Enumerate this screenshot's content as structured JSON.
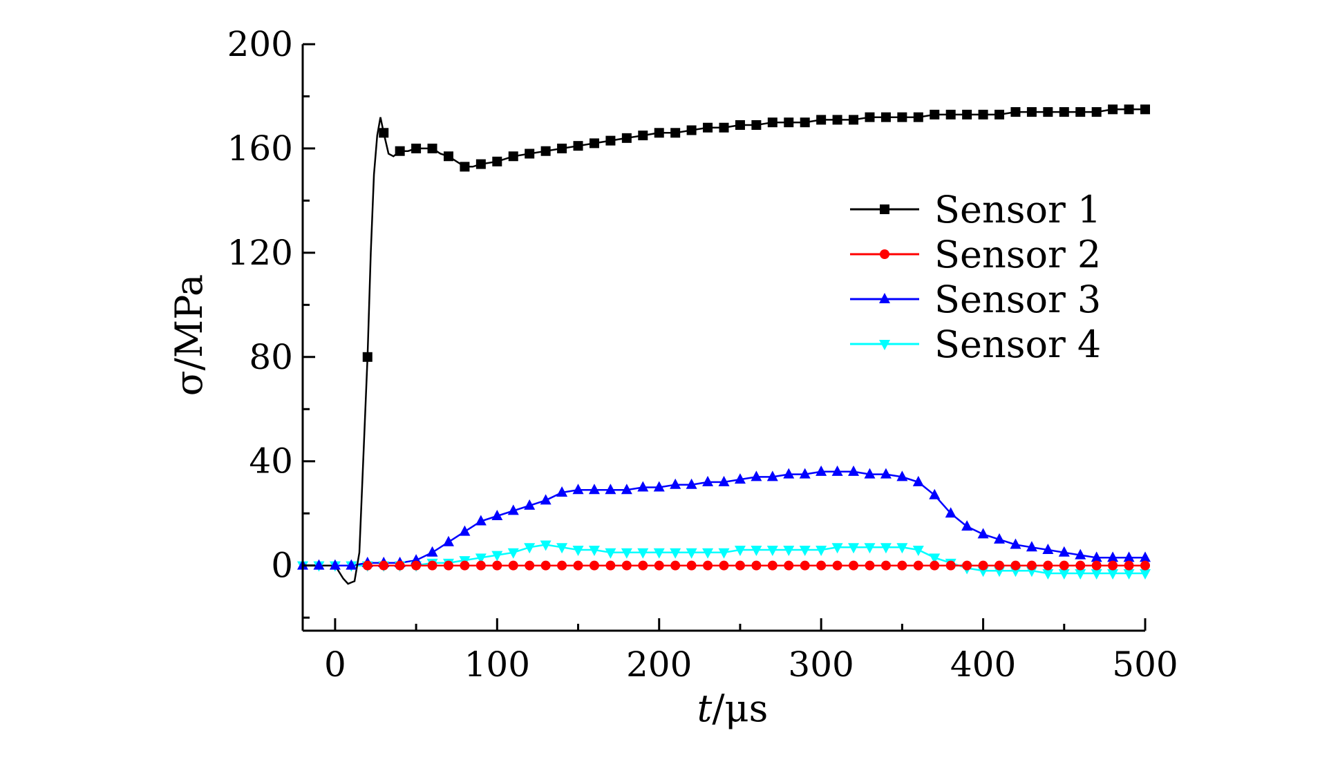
{
  "chart_data": {
    "type": "line",
    "xlabel_italic": "t",
    "xlabel_unit": "/μs",
    "ylabel": "σ/MPa",
    "xlim": [
      -20,
      500
    ],
    "ylim": [
      -25,
      200
    ],
    "x_ticks": [
      0,
      100,
      200,
      300,
      400,
      500
    ],
    "y_ticks": [
      0,
      40,
      80,
      120,
      160,
      200
    ],
    "grid": false,
    "legend_position": "right",
    "series": [
      {
        "name": "Sensor 1",
        "color": "#000000",
        "marker": "square",
        "x": [
          -20,
          -10,
          0,
          5,
          8,
          12,
          15,
          18,
          20,
          22,
          24,
          26,
          28,
          30,
          33,
          36,
          40,
          45,
          50,
          55,
          60,
          65,
          70,
          75,
          80,
          85,
          90,
          100,
          110,
          120,
          130,
          140,
          150,
          160,
          170,
          180,
          190,
          200,
          210,
          220,
          230,
          240,
          250,
          260,
          270,
          280,
          290,
          300,
          310,
          320,
          330,
          340,
          350,
          360,
          370,
          380,
          390,
          400,
          410,
          420,
          430,
          440,
          450,
          460,
          470,
          480,
          490,
          500
        ],
        "y": [
          0,
          0,
          0,
          -5,
          -7,
          -6,
          5,
          50,
          80,
          120,
          150,
          165,
          172,
          166,
          158,
          157,
          159,
          159,
          160,
          160,
          160,
          158,
          157,
          155,
          153,
          153,
          154,
          155,
          157,
          158,
          159,
          160,
          161,
          162,
          163,
          164,
          165,
          166,
          166,
          167,
          168,
          168,
          169,
          169,
          170,
          170,
          170,
          171,
          171,
          171,
          172,
          172,
          172,
          172,
          173,
          173,
          173,
          173,
          173,
          174,
          174,
          174,
          174,
          174,
          174,
          175,
          175,
          175
        ],
        "marker_x": [
          20,
          30,
          40,
          50,
          60,
          70,
          80,
          90,
          100,
          110,
          120,
          130,
          140,
          150,
          160,
          170,
          180,
          190,
          200,
          210,
          220,
          230,
          240,
          250,
          260,
          270,
          280,
          290,
          300,
          310,
          320,
          330,
          340,
          350,
          360,
          370,
          380,
          390,
          400,
          410,
          420,
          430,
          440,
          450,
          460,
          470,
          480,
          490,
          500
        ]
      },
      {
        "name": "Sensor 2",
        "color": "#ff0000",
        "marker": "circle",
        "x": [
          20,
          30,
          40,
          50,
          60,
          70,
          80,
          90,
          100,
          110,
          120,
          130,
          140,
          150,
          160,
          170,
          180,
          190,
          200,
          210,
          220,
          230,
          240,
          250,
          260,
          270,
          280,
          290,
          300,
          310,
          320,
          330,
          340,
          350,
          360,
          370,
          380,
          390,
          400,
          410,
          420,
          430,
          440,
          450,
          460,
          470,
          480,
          490,
          500
        ],
        "y": [
          0,
          0,
          0,
          0,
          0,
          0,
          0,
          0,
          0,
          0,
          0,
          0,
          0,
          0,
          0,
          0,
          0,
          0,
          0,
          0,
          0,
          0,
          0,
          0,
          0,
          0,
          0,
          0,
          0,
          0,
          0,
          0,
          0,
          0,
          0,
          0,
          0,
          0,
          0,
          0,
          0,
          0,
          0,
          0,
          0,
          0,
          0,
          0,
          0
        ]
      },
      {
        "name": "Sensor 3",
        "color": "#0000ff",
        "marker": "triangle-up",
        "x": [
          -20,
          -10,
          0,
          10,
          20,
          30,
          40,
          50,
          60,
          70,
          80,
          90,
          100,
          110,
          120,
          130,
          140,
          150,
          160,
          170,
          180,
          190,
          200,
          210,
          220,
          230,
          240,
          250,
          260,
          270,
          280,
          290,
          300,
          310,
          320,
          330,
          340,
          350,
          360,
          370,
          380,
          390,
          400,
          410,
          420,
          430,
          440,
          450,
          460,
          470,
          480,
          490,
          500
        ],
        "y": [
          0,
          0,
          0,
          0,
          1,
          1,
          1,
          2,
          5,
          9,
          13,
          17,
          19,
          21,
          23,
          25,
          28,
          29,
          29,
          29,
          29,
          30,
          30,
          31,
          31,
          32,
          32,
          33,
          34,
          34,
          35,
          35,
          36,
          36,
          36,
          35,
          35,
          34,
          32,
          27,
          20,
          15,
          12,
          10,
          8,
          7,
          6,
          5,
          4,
          3,
          3,
          3,
          3
        ]
      },
      {
        "name": "Sensor 4",
        "color": "#00ffff",
        "marker": "triangle-down",
        "x": [
          -20,
          -10,
          0,
          10,
          20,
          30,
          40,
          50,
          60,
          70,
          80,
          90,
          100,
          110,
          120,
          130,
          140,
          150,
          160,
          170,
          180,
          190,
          200,
          210,
          220,
          230,
          240,
          250,
          260,
          270,
          280,
          290,
          300,
          310,
          320,
          330,
          340,
          350,
          360,
          370,
          380,
          390,
          400,
          410,
          420,
          430,
          440,
          450,
          460,
          470,
          480,
          490,
          500
        ],
        "y": [
          0,
          0,
          0,
          0,
          0,
          0,
          0,
          0,
          1,
          1,
          2,
          3,
          4,
          5,
          7,
          8,
          7,
          6,
          6,
          5,
          5,
          5,
          5,
          5,
          5,
          5,
          5,
          6,
          6,
          6,
          6,
          6,
          6,
          7,
          7,
          7,
          7,
          7,
          6,
          3,
          1,
          -1,
          -2,
          -2,
          -2,
          -2,
          -3,
          -3,
          -3,
          -3,
          -3,
          -3,
          -3
        ]
      }
    ]
  }
}
